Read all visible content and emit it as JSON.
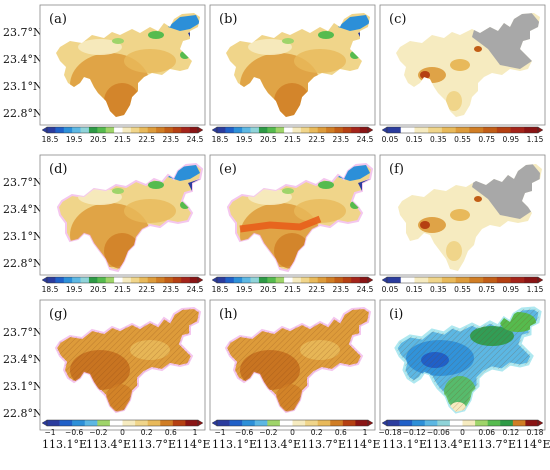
{
  "panels": [
    {
      "label": "(a)",
      "scheme": "temp"
    },
    {
      "label": "(b)",
      "scheme": "temp"
    },
    {
      "label": "(c)",
      "scheme": "std"
    },
    {
      "label": "(d)",
      "scheme": "temp"
    },
    {
      "label": "(e)",
      "scheme": "temp"
    },
    {
      "label": "(f)",
      "scheme": "std"
    },
    {
      "label": "(g)",
      "scheme": "diff"
    },
    {
      "label": "(h)",
      "scheme": "diff"
    },
    {
      "label": "(i)",
      "scheme": "small"
    }
  ],
  "lat_labels": [
    "23.7°N",
    "23.4°N",
    "23.1°N",
    "22.8°N"
  ],
  "lon_labels": [
    "113.1°E",
    "113.4°E",
    "113.7°E",
    "114°E"
  ],
  "colorbars": {
    "temp": {
      "ticks": [
        "18.5",
        "19.5",
        "20.5",
        "21.5",
        "22.5",
        "23.5",
        "24.5"
      ],
      "colors": [
        "#2b3c9e",
        "#2060c8",
        "#2c8fd8",
        "#5cb7e3",
        "#8fd3d8",
        "#2e9a46",
        "#56bb4e",
        "#9fd46a",
        "#ffffff",
        "#f6ebc0",
        "#f0d58a",
        "#e8b95a",
        "#dd9b3a",
        "#d07d24",
        "#c25e16",
        "#b54012",
        "#a4241a",
        "#8a1414"
      ]
    },
    "std": {
      "ticks": [
        "0.05",
        "0.15",
        "0.35",
        "0.55",
        "0.75",
        "0.95",
        "1.15"
      ],
      "colors": [
        "#2b3c9e",
        "#ffffff",
        "#f6ebc0",
        "#f0d58a",
        "#e8b95a",
        "#dd9b3a",
        "#d07d24",
        "#c25e16",
        "#b54012",
        "#a4241a",
        "#8a1414"
      ]
    },
    "diff": {
      "ticks": [
        "−1",
        "−0.6",
        "−0.2",
        "0",
        "0.2",
        "0.6",
        "1"
      ],
      "colors": [
        "#2b3c9e",
        "#2060c8",
        "#2c8fd8",
        "#5cb7e3",
        "#9fd46a",
        "#ffffff",
        "#f6ebc0",
        "#f0d58a",
        "#e8b95a",
        "#d07d24",
        "#b54012",
        "#8a1414"
      ]
    },
    "small": {
      "ticks": [
        "−0.18",
        "−0.12",
        "−0.06",
        "0",
        "0.06",
        "0.12",
        "0.18"
      ],
      "colors": [
        "#2b3c9e",
        "#2060c8",
        "#2c8fd8",
        "#5cb7e3",
        "#8fd3d8",
        "#ffffff",
        "#f6ebc0",
        "#9fd46a",
        "#56bb4e",
        "#2e9a46",
        "#d07d24",
        "#8a1414"
      ]
    }
  }
}
